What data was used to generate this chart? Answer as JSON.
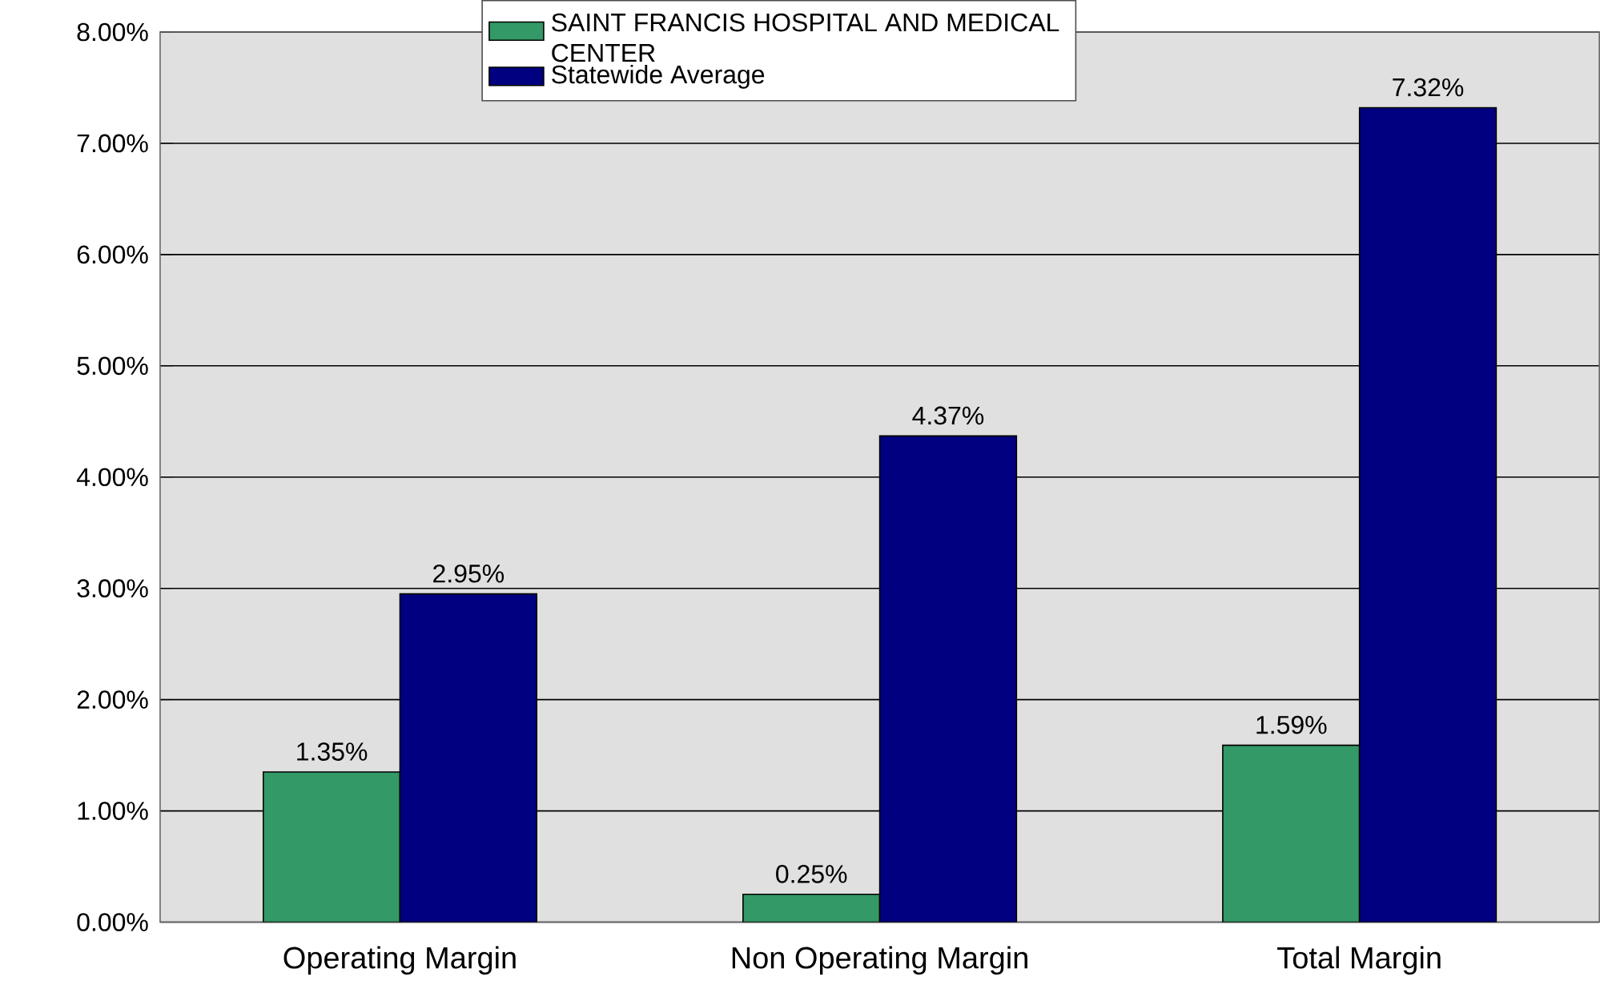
{
  "chart_data": {
    "type": "bar",
    "categories": [
      "Operating Margin",
      "Non Operating Margin",
      "Total Margin"
    ],
    "series": [
      {
        "name": "SAINT FRANCIS HOSPITAL AND MEDICAL CENTER",
        "color": "#339966",
        "values": [
          1.35,
          0.25,
          1.59
        ],
        "value_labels": [
          "1.35%",
          "0.25%",
          "1.59%"
        ]
      },
      {
        "name": "Statewide Average",
        "color": "#000080",
        "values": [
          2.95,
          4.37,
          7.32
        ],
        "value_labels": [
          "2.95%",
          "4.37%",
          "7.32%"
        ]
      }
    ],
    "ylim": [
      0,
      8
    ],
    "yticks": [
      {
        "value": 0,
        "label": "0.00%"
      },
      {
        "value": 1,
        "label": "1.00%"
      },
      {
        "value": 2,
        "label": "2.00%"
      },
      {
        "value": 3,
        "label": "3.00%"
      },
      {
        "value": 4,
        "label": "4.00%"
      },
      {
        "value": 5,
        "label": "5.00%"
      },
      {
        "value": 6,
        "label": "6.00%"
      },
      {
        "value": 7,
        "label": "7.00%"
      },
      {
        "value": 8,
        "label": "8.00%"
      }
    ],
    "grid": "y",
    "legend": "top"
  }
}
